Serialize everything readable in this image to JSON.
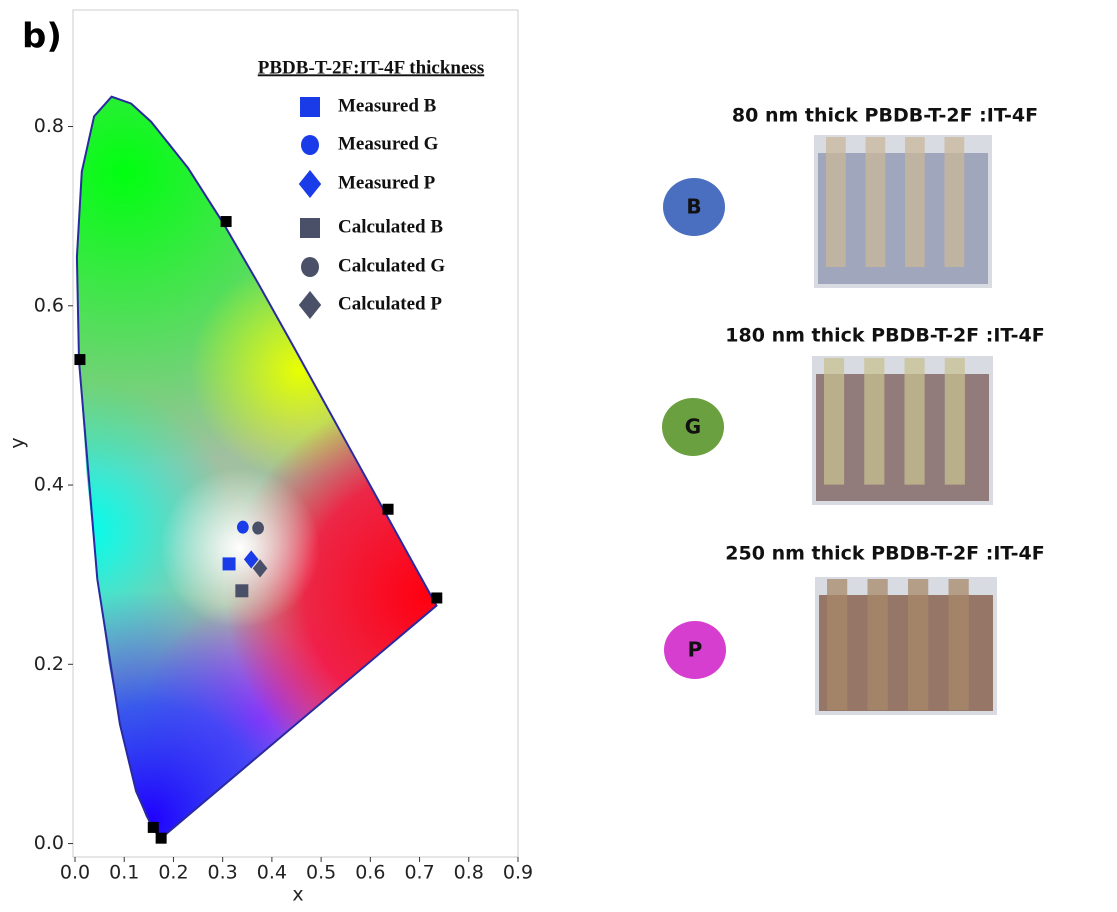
{
  "panel_label": "b)",
  "chart_data": {
    "type": "scatter",
    "xlabel": "x",
    "ylabel": "y",
    "xlim": [
      0,
      0.9
    ],
    "xticks": [
      {
        "value": 0,
        "label": "0.0"
      },
      0.1,
      0.2,
      0.3,
      0.4,
      0.5,
      0.6,
      0.7,
      0.8,
      0.9
    ],
    "ylim": [
      -0.015,
      0.93
    ],
    "yticks": [
      {
        "value": 0,
        "label": "0.0"
      },
      0.2,
      0.4,
      0.6,
      0.8
    ],
    "legend_title": "PBDB-T-2F:IT-4F thickness",
    "series": [
      {
        "color": "#000000",
        "marker": "square",
        "x": [
          0.01,
          0.307,
          0.636,
          0.735,
          0.159,
          0.175
        ],
        "values": [
          0.54,
          0.694,
          0.373,
          0.274,
          0.018,
          0.006
        ]
      },
      {
        "name": "Measured B",
        "color": "#1a3be8",
        "marker": "square",
        "x": [
          0.313
        ],
        "values": [
          0.312
        ]
      },
      {
        "name": "Measured G",
        "color": "#1a3be8",
        "marker": "circle",
        "x": [
          0.341
        ],
        "values": [
          0.353
        ]
      },
      {
        "name": "Measured P",
        "color": "#1a3be8",
        "marker": "diamond",
        "x": [
          0.358
        ],
        "values": [
          0.317
        ]
      },
      {
        "name": "Calculated B",
        "color": "#4a5068",
        "marker": "square",
        "x": [
          0.339
        ],
        "values": [
          0.282
        ]
      },
      {
        "name": "Calculated G",
        "color": "#4a5068",
        "marker": "circle",
        "x": [
          0.372
        ],
        "values": [
          0.352
        ]
      },
      {
        "name": "Calculated P",
        "color": "#4a5068",
        "marker": "diamond",
        "x": [
          0.376
        ],
        "values": [
          0.307
        ]
      }
    ]
  },
  "panels": [
    {
      "title": "80 nm thick PBDB-T-2F :IT-4F",
      "label": "B",
      "color": "#4a6fc0"
    },
    {
      "title": "180 nm thick PBDB-T-2F :IT-4F",
      "label": "G",
      "color": "#6aa040"
    },
    {
      "title": "250 nm thick PBDB-T-2F :IT-4F",
      "label": "P",
      "color": "#d63ed0"
    }
  ]
}
